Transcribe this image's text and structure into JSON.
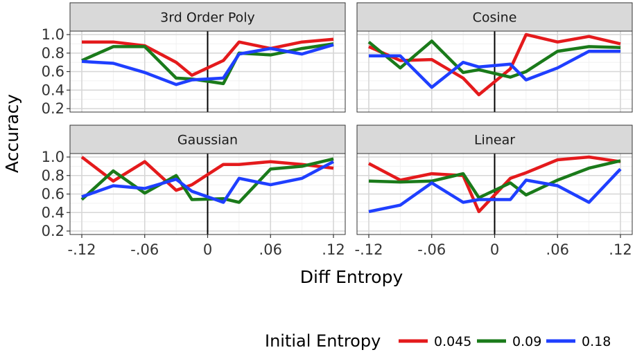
{
  "chart_data": {
    "type": "line",
    "xlabel": "Diff Entropy",
    "ylabel": "Accuracy",
    "xlim": [
      -0.12,
      0.12
    ],
    "ylim": [
      0.2,
      1.0
    ],
    "x_ticks": [
      -0.12,
      -0.06,
      0,
      0.06,
      0.12
    ],
    "x_tick_labels": [
      "-.12",
      "-.06",
      "0",
      ".06",
      ".12"
    ],
    "y_ticks": [
      0.2,
      0.4,
      0.6,
      0.8,
      1.0
    ],
    "y_tick_labels": [
      "0.2",
      "0.4",
      "0.6",
      "0.8",
      "1.0"
    ],
    "vline_x": 0,
    "grid": true,
    "legend": {
      "title": "Initial Entropy",
      "placement": "bottom",
      "entries": [
        "0.045",
        "0.09",
        "0.18"
      ]
    },
    "series_colors": [
      "#e41a1c",
      "#1a7a1a",
      "#1f3fff"
    ],
    "x": [
      -0.12,
      -0.09,
      -0.06,
      -0.03,
      -0.015,
      0.015,
      0.03,
      0.06,
      0.09,
      0.12
    ],
    "panels": [
      {
        "title": "3rd Order Poly",
        "series": [
          {
            "name": "0.045",
            "values": [
              0.92,
              0.92,
              0.88,
              0.7,
              0.56,
              0.72,
              0.92,
              0.85,
              0.92,
              0.95
            ]
          },
          {
            "name": "0.09",
            "values": [
              0.72,
              0.87,
              0.87,
              0.53,
              0.52,
              0.47,
              0.8,
              0.78,
              0.85,
              0.9
            ]
          },
          {
            "name": "0.18",
            "values": [
              0.71,
              0.69,
              0.59,
              0.46,
              0.51,
              0.53,
              0.79,
              0.85,
              0.79,
              0.89
            ]
          }
        ]
      },
      {
        "title": "Cosine",
        "series": [
          {
            "name": "0.045",
            "values": [
              0.87,
              0.72,
              0.73,
              0.53,
              0.35,
              0.63,
              1.0,
              0.92,
              0.98,
              0.9
            ]
          },
          {
            "name": "0.09",
            "values": [
              0.92,
              0.64,
              0.93,
              0.59,
              0.62,
              0.54,
              0.6,
              0.82,
              0.87,
              0.86
            ]
          },
          {
            "name": "0.18",
            "values": [
              0.77,
              0.77,
              0.43,
              0.7,
              0.65,
              0.68,
              0.51,
              0.64,
              0.82,
              0.82
            ]
          }
        ]
      },
      {
        "title": "Gaussian",
        "series": [
          {
            "name": "0.045",
            "values": [
              1.0,
              0.74,
              0.95,
              0.64,
              0.7,
              0.92,
              0.92,
              0.95,
              0.92,
              0.88
            ]
          },
          {
            "name": "0.09",
            "values": [
              0.54,
              0.85,
              0.61,
              0.8,
              0.54,
              0.55,
              0.51,
              0.87,
              0.9,
              0.98
            ]
          },
          {
            "name": "0.18",
            "values": [
              0.57,
              0.69,
              0.66,
              0.76,
              0.63,
              0.51,
              0.77,
              0.7,
              0.77,
              0.95
            ]
          }
        ]
      },
      {
        "title": "Linear",
        "series": [
          {
            "name": "0.045",
            "values": [
              0.93,
              0.75,
              0.82,
              0.8,
              0.41,
              0.77,
              0.83,
              0.97,
              1.0,
              0.95
            ]
          },
          {
            "name": "0.09",
            "values": [
              0.74,
              0.73,
              0.74,
              0.82,
              0.56,
              0.72,
              0.59,
              0.75,
              0.88,
              0.96
            ]
          },
          {
            "name": "0.18",
            "values": [
              0.41,
              0.48,
              0.72,
              0.51,
              0.54,
              0.54,
              0.75,
              0.69,
              0.51,
              0.87
            ]
          }
        ]
      }
    ]
  }
}
